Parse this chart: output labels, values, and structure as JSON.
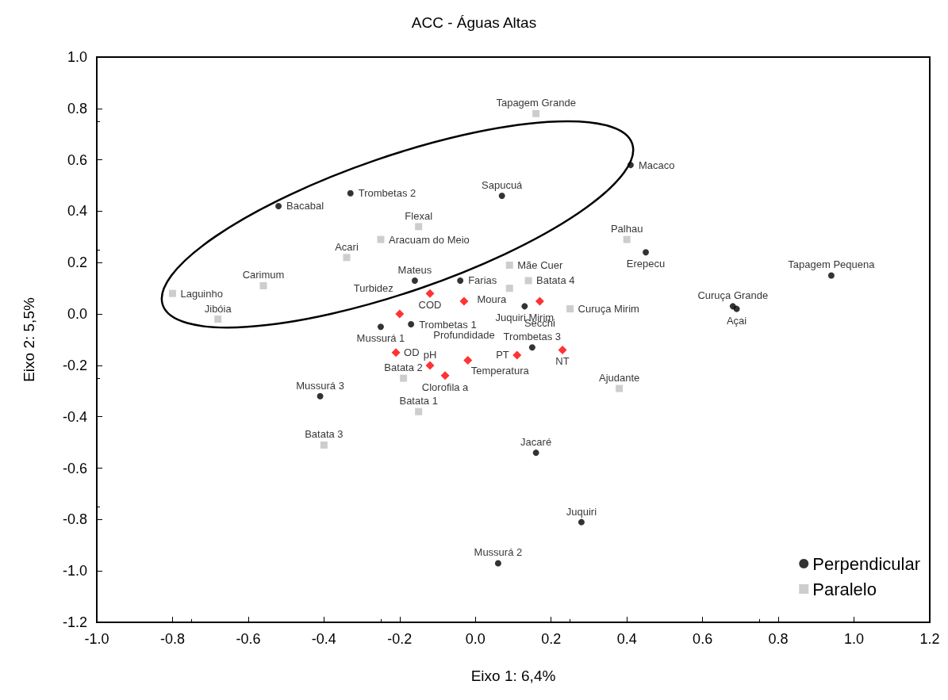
{
  "chart_data": {
    "type": "scatter",
    "title": "ACC - Águas Altas",
    "xlabel": "Eixo 1: 6,4%",
    "ylabel": "Eixo 2: 5,5%",
    "xlim": [
      -1.0,
      1.2
    ],
    "xticks": [
      {
        "value": -1.0,
        "label": "-1.0"
      },
      {
        "value": -0.8,
        "label": "-0.8"
      },
      {
        "value": -0.6,
        "label": "-0.6"
      },
      {
        "value": -0.4,
        "label": "-0.4"
      },
      {
        "value": -0.2,
        "label": "-0.2"
      },
      {
        "value": 0,
        "label": "0.0"
      },
      {
        "value": 0.2,
        "label": "0.2"
      },
      {
        "value": 0.4,
        "label": "0.4"
      },
      {
        "value": 0.6,
        "label": "0.6"
      },
      {
        "value": 0.8,
        "label": "0.8"
      },
      {
        "value": 1.0,
        "label": "1.0"
      },
      {
        "value": 1.2,
        "label": "1.2"
      }
    ],
    "ylim": [
      -1.2,
      1.0
    ],
    "yticks": [
      {
        "value": -1.2,
        "label": "-1.2"
      },
      {
        "value": -1.0,
        "label": "-1.0"
      },
      {
        "value": -0.8,
        "label": "-0.8"
      },
      {
        "value": -0.6,
        "label": "-0.6"
      },
      {
        "value": -0.4,
        "label": "-0.4"
      },
      {
        "value": -0.2,
        "label": "-0.2"
      },
      {
        "value": 0,
        "label": "0.0"
      },
      {
        "value": 0.2,
        "label": "0.2"
      },
      {
        "value": 0.4,
        "label": "0.4"
      },
      {
        "value": 0.6,
        "label": "0.6"
      },
      {
        "value": 0.8,
        "label": "0.8"
      },
      {
        "value": 1.0,
        "label": "1.0"
      }
    ],
    "grid": false,
    "legend": "bottom right",
    "series": [
      {
        "name": "Perpendicular",
        "color": "#000000",
        "marker": "circle",
        "x": [
          -0.52,
          -0.33,
          0.07,
          0.41,
          0.45,
          0.94,
          0.68,
          0.69,
          -0.16,
          -0.04,
          0.13,
          -0.25,
          -0.17,
          0.15,
          -0.41,
          0.16,
          0.28,
          0.06
        ],
        "values": [
          0.42,
          0.47,
          0.46,
          0.58,
          0.24,
          0.15,
          0.03,
          0.02,
          0.13,
          0.13,
          0.03,
          -0.05,
          -0.04,
          -0.13,
          -0.32,
          -0.54,
          -0.81,
          -0.97
        ],
        "value_labels": [
          "Bacabal",
          "Trombetas 2",
          "Sapucuá",
          "Macaco",
          "Erepecu",
          "Tapagem Pequena",
          "Curuça Grande",
          "Açai",
          "Mateus",
          "Farias",
          "Juquiri Mirim",
          "Mussurá 1",
          "Trombetas 1",
          "Trombetas 3",
          "Mussurá 3",
          "Jacaré",
          "Juquiri",
          "Mussurá 2"
        ]
      },
      {
        "name": "Paralelo",
        "color": "#c0c0c0",
        "marker": "square",
        "x": [
          0.16,
          -0.15,
          -0.25,
          -0.34,
          -0.8,
          -0.56,
          -0.68,
          0.09,
          0.09,
          0.14,
          0.4,
          0.25,
          0.38,
          -0.19,
          -0.15,
          -0.4
        ],
        "values": [
          0.78,
          0.34,
          0.29,
          0.22,
          0.08,
          0.11,
          -0.02,
          0.19,
          0.1,
          0.13,
          0.29,
          0.02,
          -0.29,
          -0.25,
          -0.38,
          -0.51
        ],
        "value_labels": [
          "Tapagem Grande",
          "Flexal",
          "Aracuam do Meio",
          "Acari",
          "Laguinho",
          "Carimum",
          "Jibóia",
          "Mãe Cuer",
          "Moura",
          "Batata 4",
          "Palhau",
          "Curuça Mirim",
          "Ajudante",
          "Batata 2",
          "Batata 1",
          "Batata 3"
        ]
      },
      {
        "color": "#ff0000",
        "marker": "diamond",
        "x": [
          -0.12,
          -0.03,
          -0.2,
          0.17,
          -0.21,
          -0.12,
          -0.02,
          -0.08,
          0.11,
          0.23
        ],
        "values": [
          0.08,
          0.05,
          0.0,
          0.05,
          -0.15,
          -0.2,
          -0.18,
          -0.24,
          -0.16,
          -0.14
        ],
        "value_labels": [
          "COD",
          "Profundidade",
          "Turbidez",
          "Secchi",
          "OD",
          "pH",
          "Temperatura",
          "Clorofila a",
          "PT",
          "NT"
        ]
      }
    ]
  }
}
